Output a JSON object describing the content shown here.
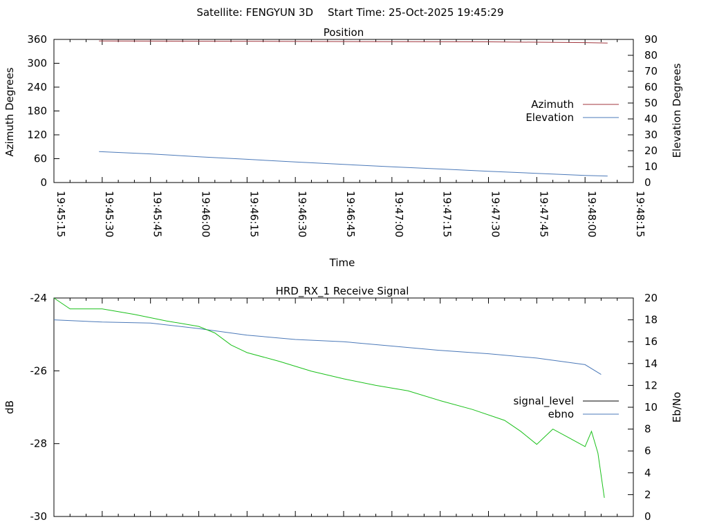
{
  "header": {
    "satellite_label": "Satellite: FENGYUN 3D",
    "start_time_label": "Start Time: 25-Oct-2025 19:45:29"
  },
  "colors": {
    "azimuth": "#a0343c",
    "elevation": "#4a78b8",
    "signal_level": "#000000",
    "ebno_line": "#4a78b8",
    "green_trace": "#19c019",
    "axis": "#000000",
    "background": "#ffffff"
  },
  "chart_data": [
    {
      "type": "line",
      "title": "Position",
      "xlabel": "Time",
      "ylabel": "Azimuth Degrees",
      "y2label": "Elevation Degrees",
      "xlim": [
        "19:45:15",
        "19:48:15"
      ],
      "ylim": [
        0,
        360
      ],
      "y2lim": [
        0,
        90
      ],
      "x_ticks": [
        "19:45:15",
        "19:45:30",
        "19:45:45",
        "19:46:00",
        "19:46:15",
        "19:46:30",
        "19:46:45",
        "19:47:00",
        "19:47:15",
        "19:47:30",
        "19:47:45",
        "19:48:00",
        "19:48:15"
      ],
      "y_ticks": [
        "0",
        "60",
        "120",
        "180",
        "240",
        "300",
        "360"
      ],
      "y2_ticks": [
        "0",
        "10",
        "20",
        "30",
        "40",
        "50",
        "60",
        "70",
        "80",
        "90"
      ],
      "legend_position": "right",
      "grid": false,
      "series": [
        {
          "name": "Azimuth",
          "axis": "left",
          "x": [
            "19:45:29",
            "19:46:00",
            "19:46:30",
            "19:47:00",
            "19:47:30",
            "19:48:00",
            "19:48:07"
          ],
          "values": [
            356,
            355.5,
            355,
            354.5,
            354,
            352,
            351
          ]
        },
        {
          "name": "Elevation",
          "axis": "right",
          "x": [
            "19:45:29",
            "19:45:45",
            "19:46:00",
            "19:46:15",
            "19:46:30",
            "19:46:45",
            "19:47:00",
            "19:47:15",
            "19:47:30",
            "19:47:45",
            "19:48:00",
            "19:48:07"
          ],
          "values": [
            19.5,
            18,
            16.2,
            14.6,
            12.9,
            11.4,
            9.9,
            8.5,
            7.1,
            5.8,
            4.5,
            4.1
          ]
        }
      ]
    },
    {
      "type": "line",
      "title": "HRD_RX_1 Receive Signal",
      "xlabel": "",
      "ylabel": "dB",
      "y2label": "Eb/No",
      "xlim": [
        "19:45:15",
        "19:48:15"
      ],
      "ylim": [
        -30,
        -24
      ],
      "y2lim": [
        0,
        20
      ],
      "y_ticks": [
        "-24",
        "-26",
        "-28",
        "-30"
      ],
      "y2_ticks": [
        "0",
        "2",
        "4",
        "6",
        "8",
        "10",
        "12",
        "14",
        "16",
        "18",
        "20"
      ],
      "legend_position": "right",
      "grid": false,
      "series": [
        {
          "name": "signal_level",
          "axis": "left",
          "values": []
        },
        {
          "name": "ebno",
          "axis": "right",
          "x": [
            "19:45:15",
            "19:45:30",
            "19:45:45",
            "19:46:00",
            "19:46:15",
            "19:46:30",
            "19:46:45",
            "19:47:00",
            "19:47:15",
            "19:47:30",
            "19:47:45",
            "19:48:00",
            "19:48:05"
          ],
          "values": [
            18,
            17.8,
            17.7,
            17.2,
            16.6,
            16.2,
            16,
            15.6,
            15.2,
            14.9,
            14.5,
            13.9,
            13
          ]
        },
        {
          "name": "",
          "axis": "right",
          "x": [
            "19:45:15",
            "19:45:20",
            "19:45:30",
            "19:45:40",
            "19:45:50",
            "19:46:00",
            "19:46:05",
            "19:46:10",
            "19:46:15",
            "19:46:25",
            "19:46:35",
            "19:46:45",
            "19:46:55",
            "19:47:05",
            "19:47:15",
            "19:47:25",
            "19:47:35",
            "19:47:40",
            "19:47:45",
            "19:47:50",
            "19:47:55",
            "19:48:00",
            "19:48:02",
            "19:48:04",
            "19:48:06"
          ],
          "values": [
            20,
            19,
            19,
            18.5,
            17.9,
            17.4,
            16.8,
            15.7,
            15,
            14.2,
            13.3,
            12.6,
            12,
            11.5,
            10.6,
            9.8,
            8.8,
            7.8,
            6.6,
            8,
            7.2,
            6.4,
            7.8,
            5.8,
            1.7
          ]
        }
      ]
    }
  ]
}
